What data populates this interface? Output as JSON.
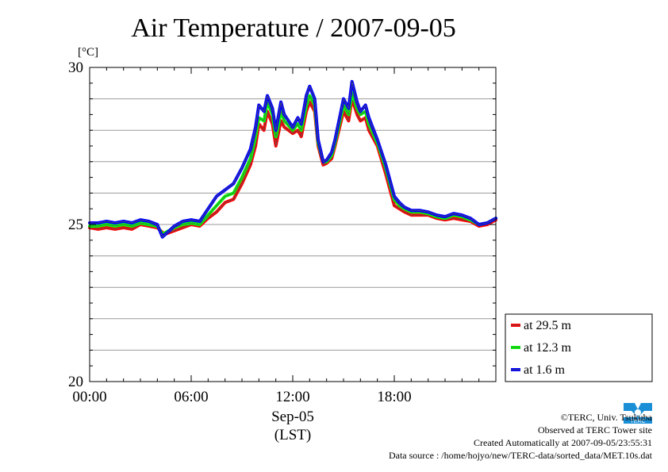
{
  "chart_data": {
    "type": "line",
    "title": "Air Temperature / 2007-09-05",
    "ylabel": "[°C]",
    "xlabel": "Sep-05",
    "xlabel2": "(LST)",
    "ylim": [
      20,
      30
    ],
    "xlim": [
      0,
      24
    ],
    "yticks": [
      20,
      25,
      30
    ],
    "ytick_labels": [
      "20",
      "25",
      "30"
    ],
    "xticks": [
      0,
      6,
      12,
      18
    ],
    "xtick_labels": [
      "00:00",
      "06:00",
      "12:00",
      "18:00"
    ],
    "grid": true,
    "legend_position": "right-bottom",
    "series": [
      {
        "name": "at 29.5 m",
        "color": "#ff0000",
        "x": [
          0,
          0.5,
          1,
          1.5,
          2,
          2.5,
          3,
          3.5,
          4,
          4.3,
          4.5,
          5,
          5.5,
          6,
          6.5,
          7,
          7.5,
          8,
          8.5,
          9,
          9.5,
          9.8,
          10,
          10.3,
          10.5,
          10.8,
          11,
          11.3,
          11.5,
          12,
          12.3,
          12.5,
          12.8,
          13,
          13.3,
          13.5,
          13.8,
          14,
          14.3,
          14.5,
          15,
          15.3,
          15.5,
          15.8,
          16,
          16.3,
          16.5,
          17,
          17.5,
          18,
          18.3,
          18.6,
          19,
          19.5,
          20,
          20.5,
          21,
          21.5,
          22,
          22.5,
          23,
          23.5,
          24
        ],
        "values": [
          24.9,
          24.85,
          24.9,
          24.85,
          24.9,
          24.85,
          25.0,
          24.95,
          24.9,
          24.75,
          24.7,
          24.8,
          24.9,
          25.0,
          24.95,
          25.2,
          25.4,
          25.7,
          25.8,
          26.3,
          26.9,
          27.5,
          28.2,
          28.0,
          28.6,
          28.2,
          27.5,
          28.3,
          28.1,
          27.9,
          28.0,
          27.8,
          28.6,
          28.9,
          28.6,
          27.5,
          26.9,
          26.95,
          27.1,
          27.5,
          28.6,
          28.3,
          29.0,
          28.5,
          28.3,
          28.4,
          28.0,
          27.5,
          26.6,
          25.6,
          25.5,
          25.4,
          25.3,
          25.3,
          25.3,
          25.2,
          25.15,
          25.2,
          25.15,
          25.1,
          24.95,
          25.0,
          25.15
        ]
      },
      {
        "name": "at 12.3 m",
        "color": "#00ff00",
        "x": [
          0,
          0.5,
          1,
          1.5,
          2,
          2.5,
          3,
          3.5,
          4,
          4.3,
          4.5,
          5,
          5.5,
          6,
          6.5,
          7,
          7.5,
          8,
          8.5,
          9,
          9.5,
          9.8,
          10,
          10.3,
          10.5,
          10.8,
          11,
          11.3,
          11.5,
          12,
          12.3,
          12.5,
          12.8,
          13,
          13.3,
          13.5,
          13.8,
          14,
          14.3,
          14.5,
          15,
          15.3,
          15.5,
          15.8,
          16,
          16.3,
          16.5,
          17,
          17.5,
          18,
          18.3,
          18.6,
          19,
          19.5,
          20,
          20.5,
          21,
          21.5,
          22,
          22.5,
          23,
          23.5,
          24
        ],
        "values": [
          24.95,
          24.95,
          25.0,
          24.95,
          25.0,
          24.95,
          25.05,
          25.0,
          24.95,
          24.7,
          24.75,
          24.9,
          25.0,
          25.05,
          25.0,
          25.3,
          25.6,
          25.9,
          26.0,
          26.5,
          27.1,
          27.8,
          28.4,
          28.3,
          28.9,
          28.5,
          27.8,
          28.6,
          28.3,
          28.0,
          28.2,
          28.0,
          28.8,
          29.1,
          28.8,
          27.6,
          27.0,
          27.0,
          27.2,
          27.6,
          28.8,
          28.5,
          29.2,
          28.7,
          28.5,
          28.6,
          28.2,
          27.6,
          26.8,
          25.8,
          25.6,
          25.5,
          25.4,
          25.4,
          25.35,
          25.25,
          25.2,
          25.3,
          25.25,
          25.15,
          25.0,
          25.05,
          25.2
        ]
      },
      {
        "name": "at 1.6 m",
        "color": "#0000ff",
        "x": [
          0,
          0.5,
          1,
          1.5,
          2,
          2.5,
          3,
          3.5,
          4,
          4.3,
          4.5,
          5,
          5.5,
          6,
          6.5,
          7,
          7.5,
          8,
          8.5,
          9,
          9.5,
          9.8,
          10,
          10.3,
          10.5,
          10.8,
          11,
          11.3,
          11.5,
          12,
          12.3,
          12.5,
          12.8,
          13,
          13.3,
          13.5,
          13.8,
          14,
          14.3,
          14.5,
          15,
          15.3,
          15.5,
          15.8,
          16,
          16.3,
          16.5,
          17,
          17.5,
          18,
          18.3,
          18.6,
          19,
          19.5,
          20,
          20.5,
          21,
          21.5,
          22,
          22.5,
          23,
          23.5,
          24
        ],
        "values": [
          25.05,
          25.05,
          25.1,
          25.05,
          25.1,
          25.05,
          25.15,
          25.1,
          25.0,
          24.6,
          24.7,
          24.95,
          25.1,
          25.15,
          25.1,
          25.5,
          25.9,
          26.1,
          26.3,
          26.8,
          27.4,
          28.1,
          28.8,
          28.6,
          29.1,
          28.7,
          28.0,
          28.9,
          28.5,
          28.1,
          28.4,
          28.2,
          29.1,
          29.4,
          29.0,
          27.7,
          27.0,
          27.05,
          27.3,
          27.7,
          29.0,
          28.7,
          29.55,
          28.9,
          28.6,
          28.8,
          28.4,
          27.7,
          26.9,
          25.9,
          25.7,
          25.55,
          25.45,
          25.45,
          25.4,
          25.3,
          25.25,
          25.35,
          25.3,
          25.2,
          25.0,
          25.05,
          25.2
        ]
      }
    ]
  },
  "footer": {
    "copyright": "©TERC, Univ. Tsukuba",
    "site": "Observed at TERC Tower site",
    "created": "Created Automatically at 2007-09-05/23:55:31",
    "source": "Data source : /home/hojyo/new/TERC-data/sorted_data/MET.10s.dat"
  },
  "logo": {
    "text": "TERC",
    "color": "#1a8fd6",
    "icon": "terc-logo-icon"
  }
}
